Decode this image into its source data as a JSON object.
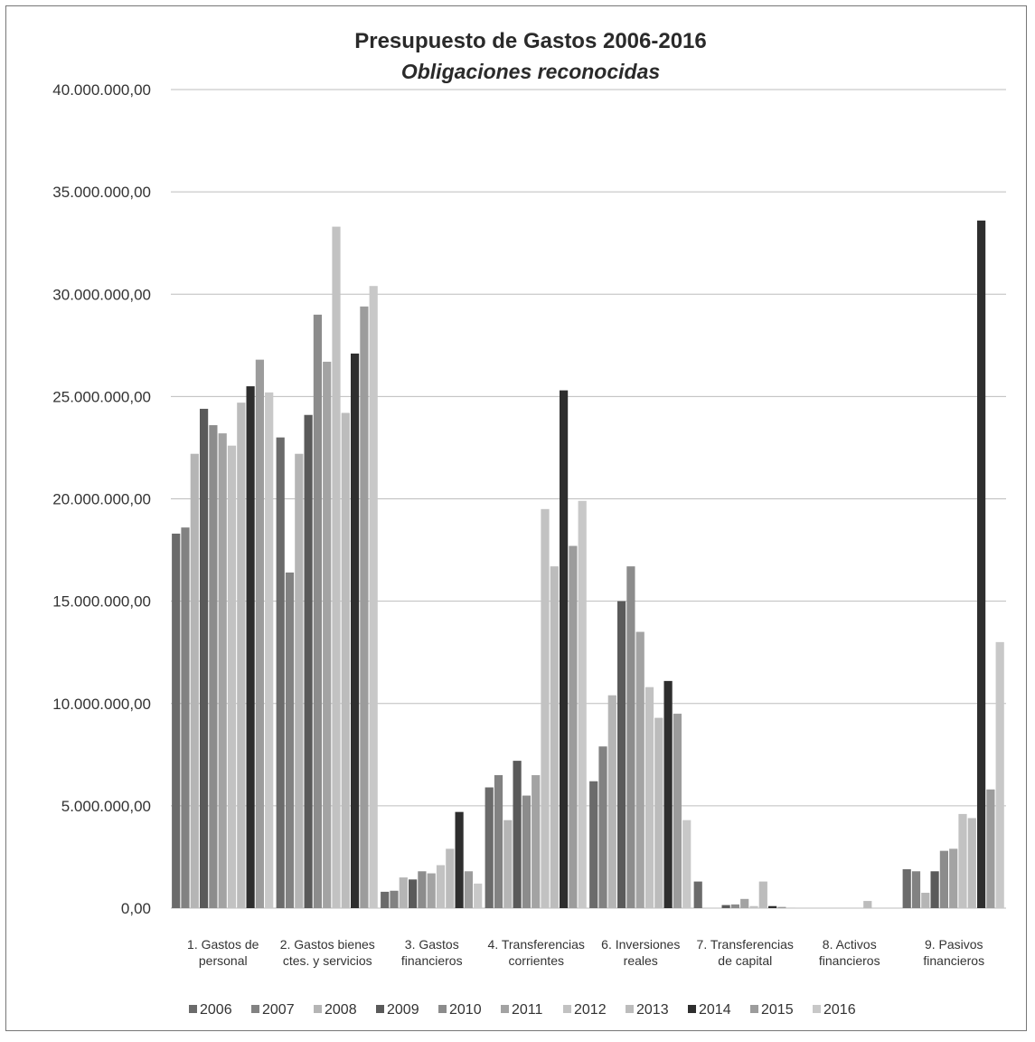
{
  "chart_data": {
    "type": "bar",
    "title": "Presupuesto de Gastos 2006-2016",
    "subtitle": "Obligaciones reconocidas",
    "xlabel": "",
    "ylabel": "",
    "ylim": [
      0,
      40000000
    ],
    "yticks": [
      0,
      5000000,
      10000000,
      15000000,
      20000000,
      25000000,
      30000000,
      35000000,
      40000000
    ],
    "ytick_labels": [
      "0,00",
      "5.000.000,00",
      "10.000.000,00",
      "15.000.000,00",
      "20.000.000,00",
      "25.000.000,00",
      "30.000.000,00",
      "35.000.000,00",
      "40.000.000,00"
    ],
    "grid": true,
    "legend_position": "bottom",
    "categories": [
      [
        "1. Gastos de",
        "personal"
      ],
      [
        "2. Gastos bienes",
        "ctes. y servicios"
      ],
      [
        "3. Gastos",
        "financieros"
      ],
      [
        "4. Transferencias",
        "corrientes"
      ],
      [
        "6. Inversiones",
        "reales"
      ],
      [
        "7. Transferencias",
        "de capital"
      ],
      [
        "8. Activos",
        "financieros"
      ],
      [
        "9. Pasivos",
        "financieros"
      ]
    ],
    "series": [
      {
        "name": "2006",
        "color": "#6b6b6b",
        "values": [
          18300000,
          23000000,
          800000,
          5900000,
          6200000,
          1300000,
          0,
          1900000
        ]
      },
      {
        "name": "2007",
        "color": "#828282",
        "values": [
          18600000,
          16400000,
          850000,
          6500000,
          7900000,
          0,
          0,
          1800000
        ]
      },
      {
        "name": "2008",
        "color": "#b5b5b5",
        "values": [
          22200000,
          22200000,
          1500000,
          4300000,
          10400000,
          0,
          0,
          750000
        ]
      },
      {
        "name": "2009",
        "color": "#5a5a5a",
        "values": [
          24400000,
          24100000,
          1400000,
          7200000,
          15000000,
          150000,
          0,
          1800000
        ]
      },
      {
        "name": "2010",
        "color": "#8c8c8c",
        "values": [
          23600000,
          29000000,
          1800000,
          5500000,
          16700000,
          180000,
          0,
          2800000
        ]
      },
      {
        "name": "2011",
        "color": "#a3a3a3",
        "values": [
          23200000,
          26700000,
          1700000,
          6500000,
          13500000,
          450000,
          0,
          2900000
        ]
      },
      {
        "name": "2012",
        "color": "#c2c2c2",
        "values": [
          22600000,
          33300000,
          2100000,
          19500000,
          10800000,
          100000,
          0,
          4600000
        ]
      },
      {
        "name": "2013",
        "color": "#bcbcbc",
        "values": [
          24700000,
          24200000,
          2900000,
          16700000,
          9300000,
          1300000,
          350000,
          4400000
        ]
      },
      {
        "name": "2014",
        "color": "#2e2e2e",
        "values": [
          25500000,
          27100000,
          4700000,
          25300000,
          11100000,
          100000,
          0,
          33600000
        ]
      },
      {
        "name": "2015",
        "color": "#9c9c9c",
        "values": [
          26800000,
          29400000,
          1800000,
          17700000,
          9500000,
          60000,
          0,
          5800000
        ]
      },
      {
        "name": "2016",
        "color": "#c8c8c8",
        "values": [
          25200000,
          30400000,
          1200000,
          19900000,
          4300000,
          30000,
          0,
          13000000
        ]
      }
    ]
  }
}
